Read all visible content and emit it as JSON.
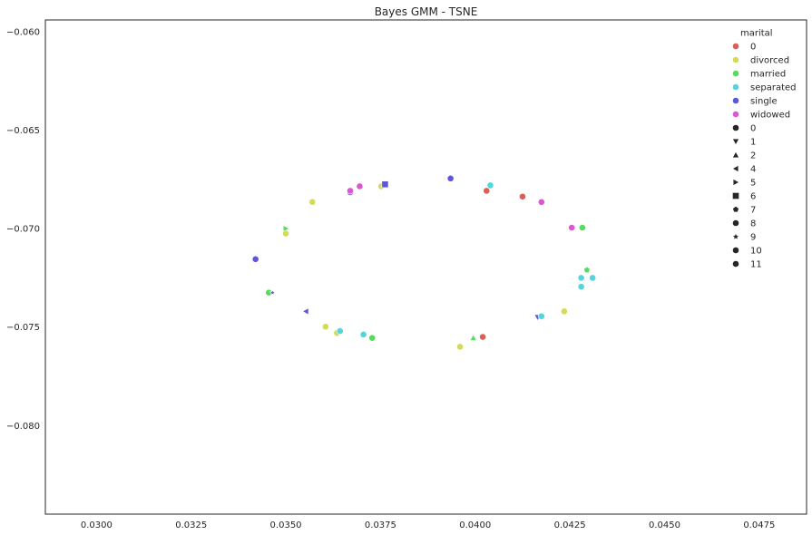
{
  "chart_data": {
    "type": "scatter",
    "title": "Bayes GMM - TSNE",
    "xlabel": "",
    "ylabel": "",
    "xlim": [
      0.02865,
      0.04875
    ],
    "ylim": [
      -0.0845,
      -0.0594
    ],
    "xticks": [
      "0.0300",
      "0.0325",
      "0.0350",
      "0.0375",
      "0.0400",
      "0.0425",
      "0.0450",
      "0.0475"
    ],
    "xtick_values": [
      0.03,
      0.0325,
      0.035,
      0.0375,
      0.04,
      0.0425,
      0.045,
      0.0475
    ],
    "yticks": [
      "-0.060",
      "-0.065",
      "-0.070",
      "-0.075",
      "-0.080"
    ],
    "ytick_values": [
      -0.06,
      -0.065,
      -0.07,
      -0.075,
      -0.08
    ],
    "grid": false,
    "legend_position": "top-right",
    "hue_title": "marital",
    "hue_items": [
      {
        "label": "0",
        "color": "#db5f57"
      },
      {
        "label": "divorced",
        "color": "#d3db57"
      },
      {
        "label": "married",
        "color": "#57db5f"
      },
      {
        "label": "separated",
        "color": "#57d3db"
      },
      {
        "label": "single",
        "color": "#5f57db"
      },
      {
        "label": "widowed",
        "color": "#db57d3"
      }
    ],
    "style_items": [
      {
        "label": "0",
        "marker": "circle"
      },
      {
        "label": "1",
        "marker": "triangle-down"
      },
      {
        "label": "2",
        "marker": "triangle-up"
      },
      {
        "label": "4",
        "marker": "triangle-left"
      },
      {
        "label": "5",
        "marker": "triangle-right"
      },
      {
        "label": "6",
        "marker": "square"
      },
      {
        "label": "7",
        "marker": "pentagon"
      },
      {
        "label": "8",
        "marker": "circle"
      },
      {
        "label": "9",
        "marker": "star"
      },
      {
        "label": "10",
        "marker": "circle"
      },
      {
        "label": "11",
        "marker": "circle"
      }
    ],
    "points": [
      {
        "x": 0.0357,
        "y": -0.06865,
        "marital": "divorced",
        "style": "0"
      },
      {
        "x": 0.0367,
        "y": -0.06815,
        "marital": "single",
        "style": "0"
      },
      {
        "x": 0.0367,
        "y": -0.06808,
        "marital": "widowed",
        "style": "0"
      },
      {
        "x": 0.03695,
        "y": -0.06785,
        "marital": "widowed",
        "style": "0"
      },
      {
        "x": 0.03752,
        "y": -0.06785,
        "marital": "divorced",
        "style": "0"
      },
      {
        "x": 0.03762,
        "y": -0.06775,
        "marital": "single",
        "style": "6"
      },
      {
        "x": 0.03935,
        "y": -0.06745,
        "marital": "single",
        "style": "0"
      },
      {
        "x": 0.0404,
        "y": -0.0678,
        "marital": "separated",
        "style": "0"
      },
      {
        "x": 0.0403,
        "y": -0.06808,
        "marital": "0",
        "style": "0"
      },
      {
        "x": 0.04125,
        "y": -0.06837,
        "marital": "0",
        "style": "0"
      },
      {
        "x": 0.04175,
        "y": -0.06865,
        "marital": "widowed",
        "style": "0"
      },
      {
        "x": 0.035,
        "y": -0.07,
        "marital": "married",
        "style": "5"
      },
      {
        "x": 0.035,
        "y": -0.07025,
        "marital": "divorced",
        "style": "0"
      },
      {
        "x": 0.04255,
        "y": -0.06995,
        "marital": "widowed",
        "style": "0"
      },
      {
        "x": 0.04283,
        "y": -0.06995,
        "marital": "married",
        "style": "0"
      },
      {
        "x": 0.0342,
        "y": -0.07155,
        "marital": "single",
        "style": "0"
      },
      {
        "x": 0.04295,
        "y": -0.0721,
        "marital": "married",
        "style": "7"
      },
      {
        "x": 0.0428,
        "y": -0.0725,
        "marital": "separated",
        "style": "0"
      },
      {
        "x": 0.0431,
        "y": -0.0725,
        "marital": "separated",
        "style": "0"
      },
      {
        "x": 0.0428,
        "y": -0.07295,
        "marital": "separated",
        "style": "0"
      },
      {
        "x": 0.03455,
        "y": -0.07325,
        "marital": "married",
        "style": "0"
      },
      {
        "x": 0.03465,
        "y": -0.07325,
        "marital": "single",
        "style": "9"
      },
      {
        "x": 0.03553,
        "y": -0.0742,
        "marital": "single",
        "style": "4"
      },
      {
        "x": 0.04235,
        "y": -0.0742,
        "marital": "divorced",
        "style": "0"
      },
      {
        "x": 0.04165,
        "y": -0.0745,
        "marital": "single",
        "style": "1"
      },
      {
        "x": 0.04175,
        "y": -0.07445,
        "marital": "separated",
        "style": "0"
      },
      {
        "x": 0.03605,
        "y": -0.07498,
        "marital": "divorced",
        "style": "0"
      },
      {
        "x": 0.03635,
        "y": -0.0753,
        "marital": "divorced",
        "style": "0"
      },
      {
        "x": 0.03643,
        "y": -0.0752,
        "marital": "separated",
        "style": "0"
      },
      {
        "x": 0.03705,
        "y": -0.07538,
        "marital": "separated",
        "style": "0"
      },
      {
        "x": 0.03728,
        "y": -0.07555,
        "marital": "married",
        "style": "0"
      },
      {
        "x": 0.03995,
        "y": -0.07555,
        "marital": "married",
        "style": "2"
      },
      {
        "x": 0.0402,
        "y": -0.0755,
        "marital": "0",
        "style": "0"
      },
      {
        "x": 0.0396,
        "y": -0.076,
        "marital": "divorced",
        "style": "0"
      }
    ]
  }
}
